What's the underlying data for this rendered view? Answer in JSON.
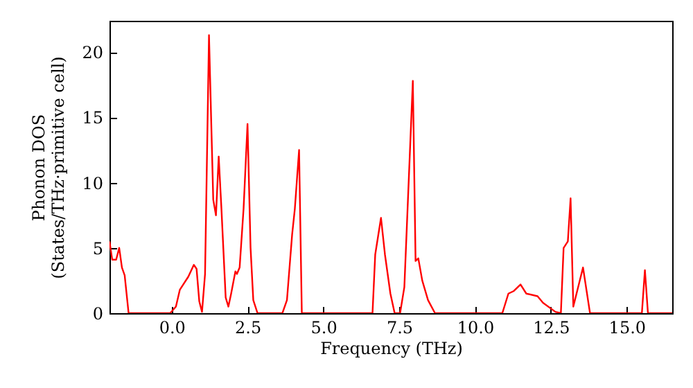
{
  "chart_data": {
    "type": "line",
    "xlabel": "Frequency (THz)",
    "ylabel": "Phonon DOS\n(States/THz·primitive cell)",
    "xlim": [
      -2.05,
      16.5
    ],
    "ylim": [
      0,
      22.4
    ],
    "xticks": [
      {
        "value": 0,
        "label": "0.0"
      },
      {
        "value": 2.5,
        "label": "2.5"
      },
      {
        "value": 5,
        "label": "5.0"
      },
      {
        "value": 7.5,
        "label": "7.5"
      },
      {
        "value": 10,
        "label": "10.0"
      },
      {
        "value": 12.5,
        "label": "12.5"
      },
      {
        "value": 15,
        "label": "15.0"
      }
    ],
    "yticks": [
      0,
      5,
      10,
      15,
      20
    ],
    "grid": false,
    "series": [
      {
        "color": "#ff0000",
        "x": [
          -2.05,
          -1.96,
          -1.83,
          -1.73,
          -1.64,
          -1.55,
          -1.42,
          -0.05,
          0.14,
          0.27,
          0.55,
          0.73,
          0.82,
          0.91,
          1.0,
          1.1,
          1.23,
          1.37,
          1.46,
          1.55,
          1.64,
          1.78,
          1.87,
          1.96,
          2.1,
          2.15,
          2.24,
          2.37,
          2.5,
          2.6,
          2.69,
          2.83,
          3.65,
          3.8,
          3.97,
          4.06,
          4.2,
          4.29,
          6.62,
          6.71,
          6.9,
          7.03,
          7.21,
          7.35,
          7.53,
          7.67,
          7.95,
          8.04,
          8.13,
          8.26,
          8.45,
          8.68,
          10.9,
          11.1,
          11.28,
          11.5,
          11.69,
          12.06,
          12.24,
          12.65,
          12.83,
          12.92,
          13.06,
          13.15,
          13.24,
          13.56,
          13.79,
          15.5,
          15.6,
          15.7,
          16.5
        ],
        "values": [
          5.5,
          4.1,
          4.1,
          5.0,
          3.5,
          2.9,
          0,
          0,
          0.5,
          1.8,
          2.8,
          3.7,
          3.4,
          0.9,
          0.1,
          3,
          21.3,
          8.7,
          7.5,
          12,
          8,
          1.2,
          0.5,
          1.5,
          3.2,
          3.0,
          3.5,
          8,
          14.5,
          5,
          1,
          0,
          0,
          1,
          6,
          8,
          12.5,
          0,
          0,
          4.5,
          7.3,
          4.5,
          1.5,
          0,
          0,
          2,
          17.8,
          4,
          4.2,
          2.5,
          1,
          0,
          0,
          1.5,
          1.7,
          2.2,
          1.5,
          1.3,
          0.8,
          0.1,
          0,
          5,
          5.5,
          8.8,
          0.5,
          3.5,
          0,
          0,
          3.3,
          0,
          0
        ]
      }
    ]
  }
}
